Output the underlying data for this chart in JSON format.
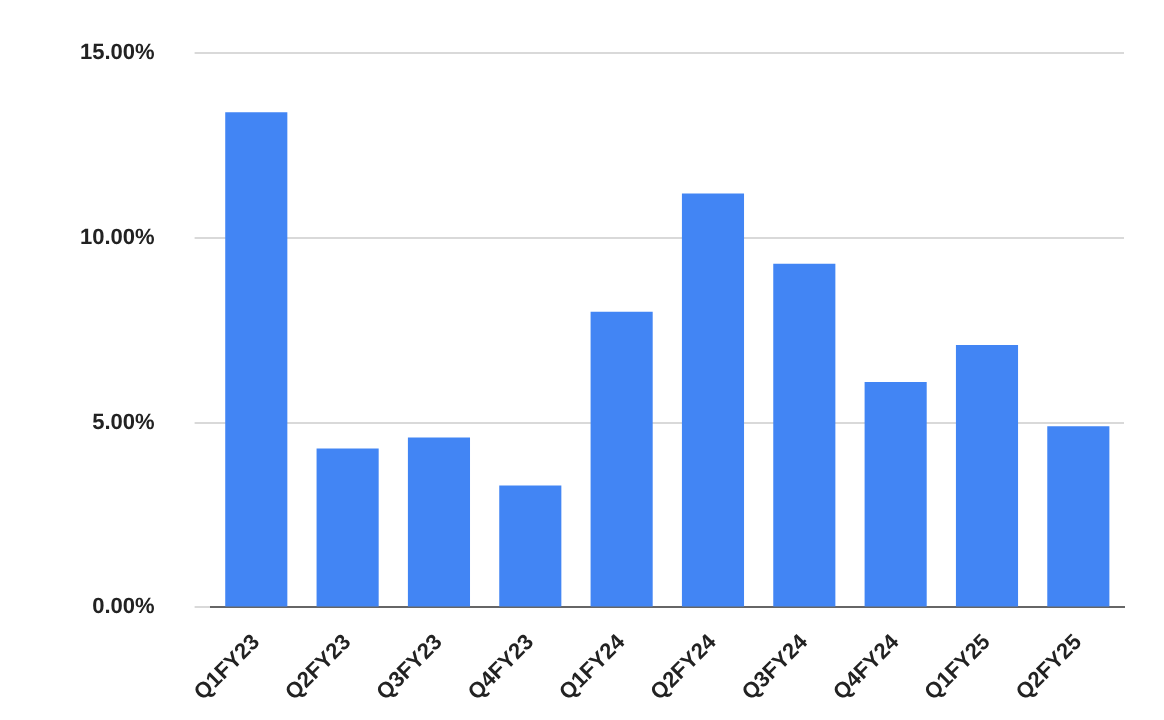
{
  "chart_data": {
    "type": "bar",
    "categories": [
      "Q1FY23",
      "Q2FY23",
      "Q3FY23",
      "Q4FY23",
      "Q1FY24",
      "Q2FY24",
      "Q3FY24",
      "Q4FY24",
      "Q1FY25",
      "Q2FY25"
    ],
    "values": [
      13.4,
      4.3,
      4.6,
      3.3,
      8.0,
      11.2,
      9.3,
      6.1,
      7.1,
      4.9
    ],
    "color": "#4285f4",
    "ylim": [
      0,
      15
    ],
    "yticks": [
      {
        "value": 0,
        "label": "0.00%"
      },
      {
        "value": 5,
        "label": "5.00%"
      },
      {
        "value": 10,
        "label": "10.00%"
      },
      {
        "value": 15,
        "label": "15.00%"
      }
    ],
    "grid": "y",
    "legend": false
  }
}
